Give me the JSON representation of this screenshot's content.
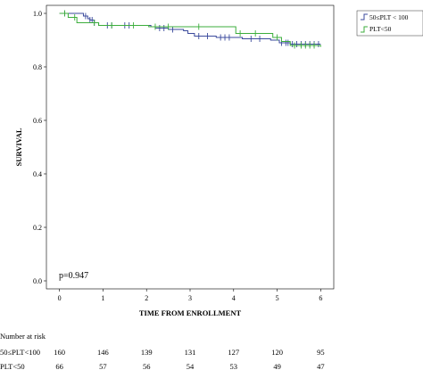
{
  "chart_data": {
    "type": "line",
    "chart_style": "kaplan-meier survival curve with censor marks",
    "xlabel": "TIME FROM ENROLLMENT",
    "ylabel": "SURVIVAL",
    "xlim": [
      -0.3,
      6.3
    ],
    "ylim": [
      -0.03,
      1.03
    ],
    "x_ticks": [
      "0",
      "1",
      "2",
      "3",
      "4",
      "5",
      "6"
    ],
    "y_ticks": [
      "0.0",
      "0.2",
      "0.4",
      "0.6",
      "0.8",
      "1.0"
    ],
    "grid": false,
    "legend_position": "top-right",
    "annotation": "p=0.947",
    "series": [
      {
        "name": "50≤PLT < 100",
        "color": "#3b4a9c",
        "steps": [
          [
            0,
            1.0
          ],
          [
            0.55,
            0.99
          ],
          [
            0.65,
            0.98
          ],
          [
            0.7,
            0.975
          ],
          [
            0.8,
            0.965
          ],
          [
            0.9,
            0.955
          ],
          [
            2.1,
            0.95
          ],
          [
            2.2,
            0.945
          ],
          [
            2.5,
            0.94
          ],
          [
            2.85,
            0.935
          ],
          [
            2.95,
            0.925
          ],
          [
            3.1,
            0.915
          ],
          [
            3.6,
            0.91
          ],
          [
            4.2,
            0.905
          ],
          [
            4.6,
            0.905
          ],
          [
            4.85,
            0.9
          ],
          [
            5.05,
            0.89
          ],
          [
            5.3,
            0.885
          ],
          [
            5.5,
            0.885
          ],
          [
            6.0,
            0.885
          ]
        ],
        "censored": [
          0.12,
          0.6,
          0.7,
          0.75,
          0.8,
          1.1,
          1.2,
          1.5,
          1.6,
          2.3,
          2.4,
          2.6,
          3.2,
          3.4,
          3.7,
          3.8,
          3.9,
          4.4,
          4.6,
          5.1,
          5.2,
          5.25,
          5.35,
          5.45,
          5.55,
          5.65,
          5.75,
          5.85,
          5.95
        ]
      },
      {
        "name": "PLT<50",
        "color": "#3cae3c",
        "steps": [
          [
            0,
            1.0
          ],
          [
            0.2,
            0.985
          ],
          [
            0.4,
            0.965
          ],
          [
            0.9,
            0.955
          ],
          [
            2.05,
            0.95
          ],
          [
            4.05,
            0.925
          ],
          [
            4.9,
            0.91
          ],
          [
            5.1,
            0.895
          ],
          [
            5.3,
            0.88
          ],
          [
            6.0,
            0.875
          ]
        ],
        "censored": [
          0.12,
          0.35,
          0.8,
          1.2,
          1.7,
          2.2,
          2.5,
          3.2,
          4.15,
          4.5,
          5.0,
          5.4,
          5.55,
          5.65,
          5.75,
          5.85
        ]
      }
    ]
  },
  "risk_table": {
    "title": "Number at risk",
    "rows": [
      {
        "label": "50≤PLT<100",
        "values": [
          "160",
          "146",
          "139",
          "131",
          "127",
          "120",
          "95"
        ]
      },
      {
        "label": "PLT<50",
        "values": [
          "66",
          "57",
          "56",
          "54",
          "53",
          "49",
          "47"
        ]
      }
    ]
  }
}
